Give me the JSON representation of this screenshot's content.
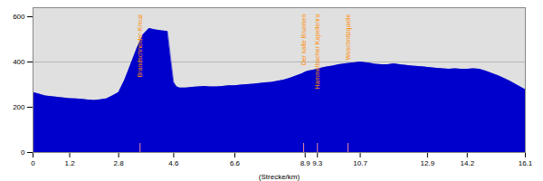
{
  "chart_data": {
    "type": "area",
    "xlabel": "(Strecke/km)",
    "x": [
      0.0,
      0.2,
      0.4,
      0.6,
      0.8,
      1.0,
      1.2,
      1.4,
      1.6,
      1.8,
      2.0,
      2.2,
      2.4,
      2.6,
      2.8,
      3.0,
      3.2,
      3.4,
      3.6,
      3.8,
      4.0,
      4.2,
      4.4,
      4.5,
      4.6,
      4.7,
      4.8,
      5.0,
      5.2,
      5.4,
      5.6,
      5.8,
      6.0,
      6.2,
      6.4,
      6.6,
      6.8,
      7.0,
      7.2,
      7.4,
      7.6,
      7.8,
      8.0,
      8.2,
      8.4,
      8.6,
      8.8,
      8.9,
      9.0,
      9.1,
      9.2,
      9.3,
      9.4,
      9.5,
      9.6,
      9.7,
      9.8,
      10.0,
      10.2,
      10.4,
      10.6,
      10.7,
      10.8,
      11.0,
      11.2,
      11.4,
      11.6,
      11.8,
      12.0,
      12.2,
      12.4,
      12.6,
      12.8,
      12.9,
      13.0,
      13.2,
      13.4,
      13.6,
      13.8,
      14.0,
      14.2,
      14.4,
      14.6,
      14.8,
      15.0,
      15.2,
      15.4,
      15.6,
      15.8,
      16.0,
      16.1
    ],
    "values": [
      265,
      258,
      250,
      247,
      244,
      241,
      238,
      237,
      235,
      232,
      230,
      233,
      237,
      250,
      265,
      320,
      390,
      460,
      520,
      548,
      542,
      538,
      535,
      420,
      310,
      290,
      285,
      285,
      288,
      290,
      292,
      290,
      290,
      292,
      295,
      295,
      298,
      300,
      302,
      305,
      308,
      310,
      315,
      320,
      328,
      338,
      348,
      355,
      360,
      362,
      365,
      368,
      372,
      375,
      378,
      380,
      382,
      388,
      392,
      395,
      398,
      400,
      398,
      395,
      390,
      388,
      388,
      392,
      388,
      385,
      382,
      380,
      378,
      376,
      375,
      372,
      370,
      368,
      370,
      368,
      368,
      370,
      368,
      360,
      350,
      340,
      328,
      315,
      300,
      285,
      278
    ],
    "color": "#0000CC",
    "bg_color": "#e0e0e0",
    "xlim": [
      0,
      16.1
    ],
    "ylim": [
      0,
      640
    ],
    "xticks": [
      0,
      1.2,
      2.8,
      4.6,
      6.6,
      8.9,
      9.3,
      10.7,
      12.9,
      14.2,
      16.1
    ],
    "yticks": [
      0,
      200,
      400,
      600
    ],
    "grid": false,
    "reference_line": {
      "y": 400,
      "color": "#aaaaaa"
    },
    "waypoint_tick": {
      "color": "#FF9999",
      "y": [
        0,
        40
      ]
    },
    "waypoints": [
      {
        "x": 3.5,
        "label": "Brandschneider-Kreuz",
        "color": "#FF8C00"
      },
      {
        "x": 8.85,
        "label": "Der kalte Brunnen",
        "color": "#FF8C00"
      },
      {
        "x": 9.3,
        "label": "Hammelbacher Kapellenru",
        "color": "#FF8C00"
      },
      {
        "x": 10.3,
        "label": "Weschnitzquelle",
        "color": "#FF8C00"
      }
    ]
  }
}
